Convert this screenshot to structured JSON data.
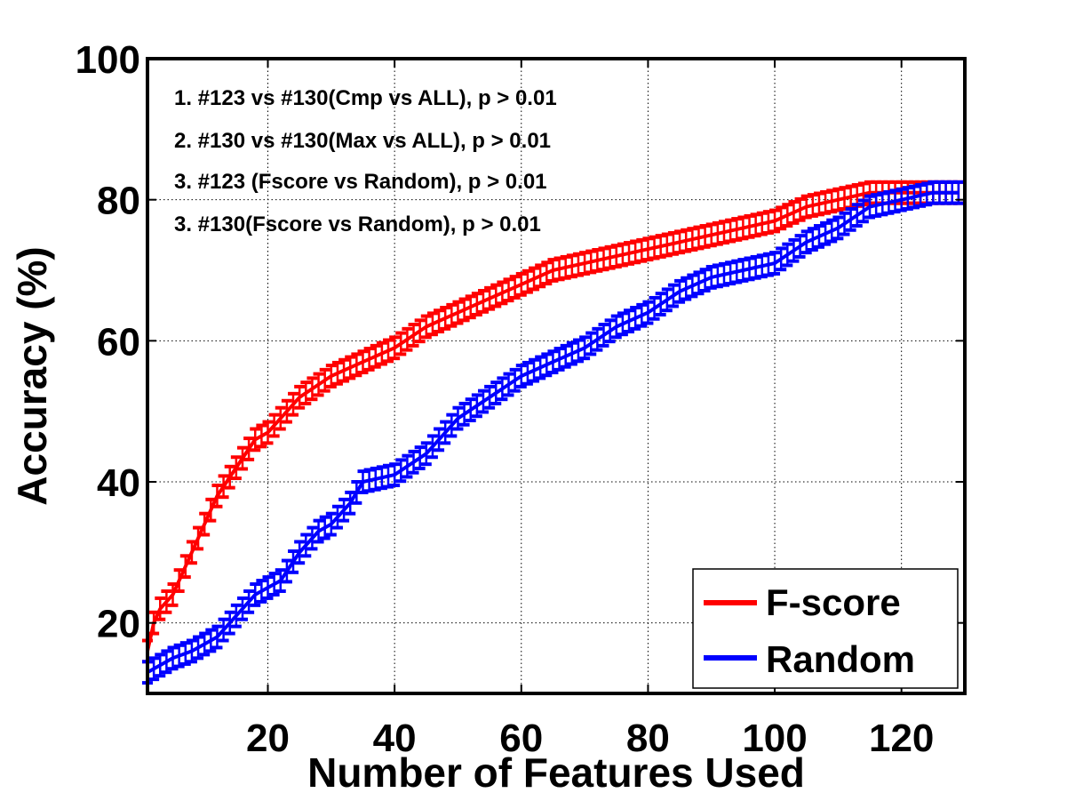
{
  "chart_data": {
    "type": "line",
    "xlabel": "Number of Features Used",
    "ylabel": "Accuracy (%)",
    "xlim": [
      1,
      130
    ],
    "ylim": [
      10,
      100
    ],
    "x_ticks": [
      20,
      40,
      60,
      80,
      100,
      120
    ],
    "y_ticks": [
      20,
      40,
      60,
      80,
      100
    ],
    "grid": true,
    "grid_style": "dotted",
    "error_bars": true,
    "legend": {
      "position": "bottom-right"
    },
    "annotations": [
      "1. #123 vs #130(Cmp vs ALL), p > 0.01",
      "2. #130 vs #130(Max vs ALL), p > 0.01",
      "3. #123 (Fscore vs Random), p > 0.01",
      "3. #130(Fscore vs Random), p > 0.01"
    ],
    "series": [
      {
        "name": "F-score",
        "color": "#ff0000",
        "points": [
          [
            1,
            16
          ],
          [
            2,
            20
          ],
          [
            3,
            22
          ],
          [
            5,
            24
          ],
          [
            8,
            30
          ],
          [
            10,
            34
          ],
          [
            12,
            38
          ],
          [
            15,
            42
          ],
          [
            18,
            46
          ],
          [
            20,
            47
          ],
          [
            22,
            49
          ],
          [
            25,
            52
          ],
          [
            30,
            55
          ],
          [
            35,
            57
          ],
          [
            40,
            59
          ],
          [
            45,
            62
          ],
          [
            50,
            64
          ],
          [
            55,
            66
          ],
          [
            60,
            68
          ],
          [
            65,
            70
          ],
          [
            70,
            71
          ],
          [
            75,
            72
          ],
          [
            80,
            73
          ],
          [
            85,
            74
          ],
          [
            90,
            75
          ],
          [
            95,
            76
          ],
          [
            100,
            77
          ],
          [
            105,
            79
          ],
          [
            110,
            80
          ],
          [
            115,
            81
          ],
          [
            120,
            81
          ],
          [
            125,
            81
          ],
          [
            129,
            81
          ]
        ],
        "error": 1.5
      },
      {
        "name": "Random",
        "color": "#0000ff",
        "points": [
          [
            1,
            13
          ],
          [
            3,
            14
          ],
          [
            5,
            15
          ],
          [
            8,
            16
          ],
          [
            10,
            17
          ],
          [
            12,
            18
          ],
          [
            15,
            21
          ],
          [
            18,
            24
          ],
          [
            20,
            25
          ],
          [
            22,
            26
          ],
          [
            25,
            30
          ],
          [
            28,
            33
          ],
          [
            30,
            34
          ],
          [
            33,
            37
          ],
          [
            35,
            40
          ],
          [
            40,
            41
          ],
          [
            45,
            44
          ],
          [
            47,
            46
          ],
          [
            50,
            49
          ],
          [
            55,
            52
          ],
          [
            60,
            55
          ],
          [
            65,
            57
          ],
          [
            70,
            59
          ],
          [
            75,
            62
          ],
          [
            80,
            64
          ],
          [
            85,
            67
          ],
          [
            90,
            69
          ],
          [
            95,
            70
          ],
          [
            100,
            71
          ],
          [
            105,
            74
          ],
          [
            110,
            76
          ],
          [
            115,
            79
          ],
          [
            120,
            80
          ],
          [
            125,
            81
          ],
          [
            129,
            81
          ]
        ],
        "error": 1.5
      }
    ]
  }
}
